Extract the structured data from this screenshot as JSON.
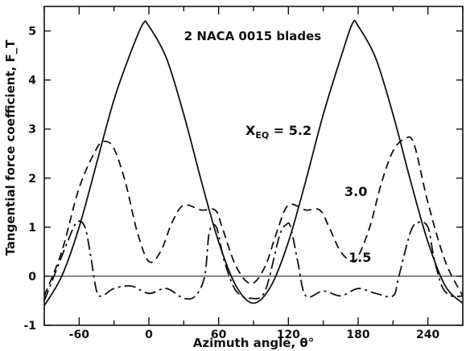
{
  "chart_data": {
    "type": "line",
    "title": "2 NACA 0015 blades",
    "xlabel": "Azimuth angle, θ°",
    "ylabel": "Tangential force coefficient, F_T",
    "xlim": [
      -90,
      270
    ],
    "ylim": [
      -1,
      5.5
    ],
    "x_ticks": [
      "-60",
      "0",
      "60",
      "120",
      "180",
      "240"
    ],
    "y_ticks": [
      "-1",
      "0",
      "1",
      "2",
      "3",
      "4",
      "5"
    ],
    "grid": false,
    "series": [
      {
        "name": "X_EQ = 5.2",
        "style": "solid",
        "x": [
          -90,
          -75,
          -60,
          -45,
          -30,
          -15,
          -5,
          0,
          15,
          30,
          45,
          60,
          75,
          90,
          105,
          120,
          135,
          150,
          165,
          175,
          180,
          195,
          210,
          225,
          240,
          255,
          270
        ],
        "y": [
          -0.6,
          0.0,
          1.0,
          2.3,
          3.6,
          4.6,
          5.15,
          5.1,
          4.45,
          3.3,
          1.95,
          0.7,
          -0.2,
          -0.55,
          -0.2,
          0.7,
          1.95,
          3.3,
          4.45,
          5.15,
          5.1,
          4.45,
          3.3,
          1.95,
          0.7,
          -0.2,
          -0.55
        ]
      },
      {
        "name": "3.0",
        "style": "dashed",
        "x": [
          -90,
          -75,
          -60,
          -45,
          -38,
          -30,
          -20,
          -10,
          0,
          10,
          20,
          30,
          45,
          57,
          63,
          75,
          88,
          100,
          110,
          120,
          135,
          147,
          155,
          165,
          175,
          180,
          190,
          200,
          210,
          220,
          228,
          240,
          255,
          270
        ],
        "y": [
          -0.4,
          0.5,
          1.8,
          2.6,
          2.75,
          2.6,
          1.9,
          0.9,
          0.3,
          0.5,
          1.1,
          1.45,
          1.35,
          1.35,
          1.0,
          0.2,
          -0.15,
          0.2,
          0.9,
          1.45,
          1.35,
          1.35,
          1.0,
          0.5,
          0.3,
          0.4,
          1.0,
          1.9,
          2.55,
          2.8,
          2.7,
          1.5,
          0.3,
          -0.4
        ]
      },
      {
        "name": "1.5",
        "style": "dashdot",
        "x": [
          -90,
          -80,
          -70,
          -62,
          -55,
          -50,
          -45,
          -40,
          -30,
          -15,
          0,
          15,
          30,
          40,
          48,
          52,
          58,
          65,
          75,
          88,
          100,
          112,
          118,
          122,
          128,
          135,
          150,
          165,
          180,
          195,
          210,
          215,
          225,
          232,
          240,
          245,
          252,
          260,
          270
        ],
        "y": [
          -0.5,
          0.1,
          0.7,
          1.1,
          1.0,
          0.4,
          -0.3,
          -0.4,
          -0.25,
          -0.2,
          -0.35,
          -0.25,
          -0.45,
          -0.4,
          0.0,
          0.9,
          1.0,
          0.3,
          -0.3,
          -0.45,
          -0.3,
          0.8,
          1.05,
          1.0,
          0.3,
          -0.4,
          -0.3,
          -0.4,
          -0.25,
          -0.35,
          -0.4,
          0.0,
          0.9,
          1.1,
          1.0,
          0.4,
          -0.2,
          -0.4,
          -0.4
        ]
      }
    ],
    "annotations": {
      "xeq_prefix": "X",
      "xeq_sub": "EQ",
      "xeq_value": " = 5.2",
      "label_30": "3.0",
      "label_15": "1.5"
    }
  }
}
